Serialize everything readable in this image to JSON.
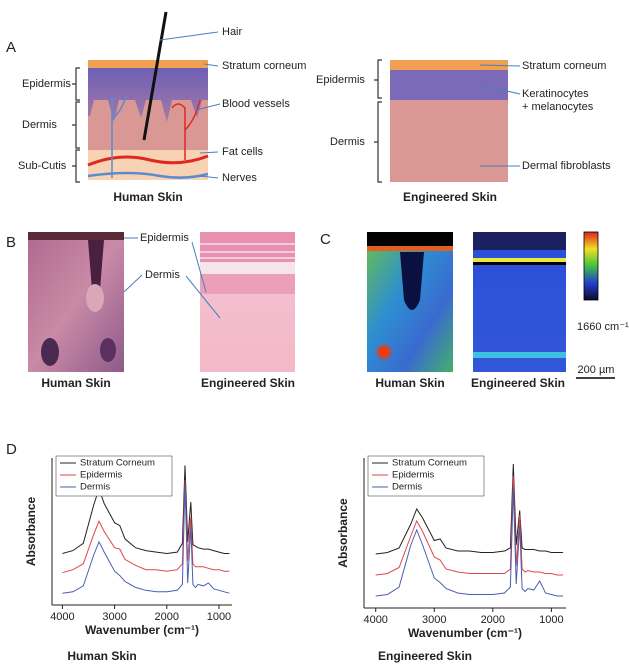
{
  "panel_labels": [
    "A",
    "B",
    "C",
    "D"
  ],
  "panel_a": {
    "human": {
      "caption": "Human Skin",
      "left_labels": [
        "Epidermis",
        "Dermis",
        "Sub-Cutis"
      ],
      "right_labels": [
        "Hair",
        "Stratum corneum",
        "Blood vessels",
        "Fat cells",
        "Nerves"
      ]
    },
    "engineered": {
      "caption": "Engineered Skin",
      "left_labels": [
        "Epidermis",
        "Dermis"
      ],
      "right_labels": [
        "Stratum corneum",
        "Keratinocytes",
        "+ melanocytes",
        "Dermal fibroblasts"
      ]
    }
  },
  "panel_b": {
    "labels": [
      "Epidermis",
      "Dermis"
    ],
    "captions": [
      "Human Skin",
      "Engineered Skin"
    ]
  },
  "panel_c": {
    "band_label": "1660 cm⁻¹",
    "scale_bar": "200 µm",
    "captions": [
      "Human Skin",
      "Engineered Skin"
    ]
  },
  "chart_data": [
    {
      "type": "line",
      "caption": "Human Skin",
      "xlabel": "Wavenumber (cm⁻¹)",
      "ylabel": "Absorbance",
      "x": [
        4000,
        3800,
        3600,
        3400,
        3300,
        3200,
        3000,
        2900,
        2800,
        2600,
        2400,
        2200,
        2000,
        1800,
        1700,
        1650,
        1600,
        1540,
        1500,
        1450,
        1400,
        1300,
        1200,
        1100,
        1000,
        900,
        800
      ],
      "xlim": [
        4200,
        750
      ],
      "xticks": [
        4000,
        3000,
        2000,
        1000
      ],
      "ylim": [
        0,
        10
      ],
      "series": [
        {
          "name": "Stratum Corneum",
          "color": "#222222",
          "values": [
            3.5,
            3.7,
            4.2,
            6.8,
            7.9,
            6.9,
            5.6,
            5.4,
            4.5,
            3.9,
            3.7,
            3.6,
            3.5,
            3.6,
            4.2,
            9.5,
            4.3,
            7.0,
            4.1,
            4.0,
            3.9,
            3.8,
            3.8,
            3.7,
            3.6,
            3.5,
            3.5
          ]
        },
        {
          "name": "Epidermis",
          "color": "#e0454a",
          "values": [
            2.2,
            2.4,
            2.8,
            4.8,
            5.7,
            5.0,
            3.9,
            3.8,
            3.1,
            2.7,
            2.4,
            2.4,
            2.3,
            2.4,
            2.8,
            8.5,
            3.0,
            6.0,
            2.8,
            2.6,
            2.6,
            2.6,
            2.5,
            2.4,
            2.4,
            2.3,
            2.3
          ]
        },
        {
          "name": "Dermis",
          "color": "#4a5fb0",
          "values": [
            0.8,
            0.9,
            1.3,
            3.4,
            4.3,
            3.6,
            2.3,
            2.0,
            1.6,
            1.2,
            1.0,
            0.9,
            0.9,
            1.0,
            1.4,
            8.3,
            1.5,
            5.3,
            1.4,
            1.2,
            1.4,
            1.3,
            1.5,
            1.1,
            1.0,
            0.9,
            0.8
          ]
        }
      ]
    },
    {
      "type": "line",
      "caption": "Engineered Skin",
      "xlabel": "Wavenumber (cm⁻¹)",
      "ylabel": "Absorbance",
      "x": [
        4000,
        3800,
        3600,
        3400,
        3300,
        3200,
        3000,
        2900,
        2800,
        2600,
        2400,
        2200,
        2000,
        1800,
        1700,
        1650,
        1600,
        1540,
        1500,
        1450,
        1400,
        1300,
        1200,
        1100,
        1000,
        900,
        800
      ],
      "xlim": [
        4200,
        750
      ],
      "xticks": [
        4000,
        3000,
        2000,
        1000
      ],
      "ylim": [
        0,
        10
      ],
      "series": [
        {
          "name": "Stratum Corneum",
          "color": "#222222",
          "values": [
            3.6,
            3.7,
            4.0,
            5.6,
            6.6,
            6.0,
            4.5,
            4.6,
            4.0,
            3.8,
            3.8,
            3.7,
            3.7,
            3.8,
            4.0,
            9.6,
            4.2,
            6.5,
            4.0,
            3.9,
            3.9,
            3.9,
            3.8,
            3.8,
            3.7,
            3.7,
            3.7
          ]
        },
        {
          "name": "Epidermis",
          "color": "#e0454a",
          "values": [
            2.2,
            2.3,
            2.7,
            4.8,
            5.8,
            5.1,
            3.4,
            3.2,
            2.6,
            2.4,
            2.3,
            2.3,
            2.3,
            2.3,
            2.6,
            8.8,
            2.8,
            6.2,
            2.6,
            2.4,
            2.5,
            2.4,
            2.4,
            2.3,
            2.3,
            2.2,
            2.2
          ]
        },
        {
          "name": "Dermis",
          "color": "#4a5fb0",
          "values": [
            0.8,
            0.9,
            1.4,
            4.2,
            5.2,
            4.2,
            2.0,
            1.7,
            1.3,
            1.0,
            0.9,
            0.9,
            0.9,
            1.0,
            1.4,
            8.0,
            1.6,
            5.5,
            1.3,
            1.1,
            1.3,
            1.2,
            1.8,
            1.0,
            0.9,
            0.8,
            0.8
          ]
        }
      ]
    }
  ]
}
